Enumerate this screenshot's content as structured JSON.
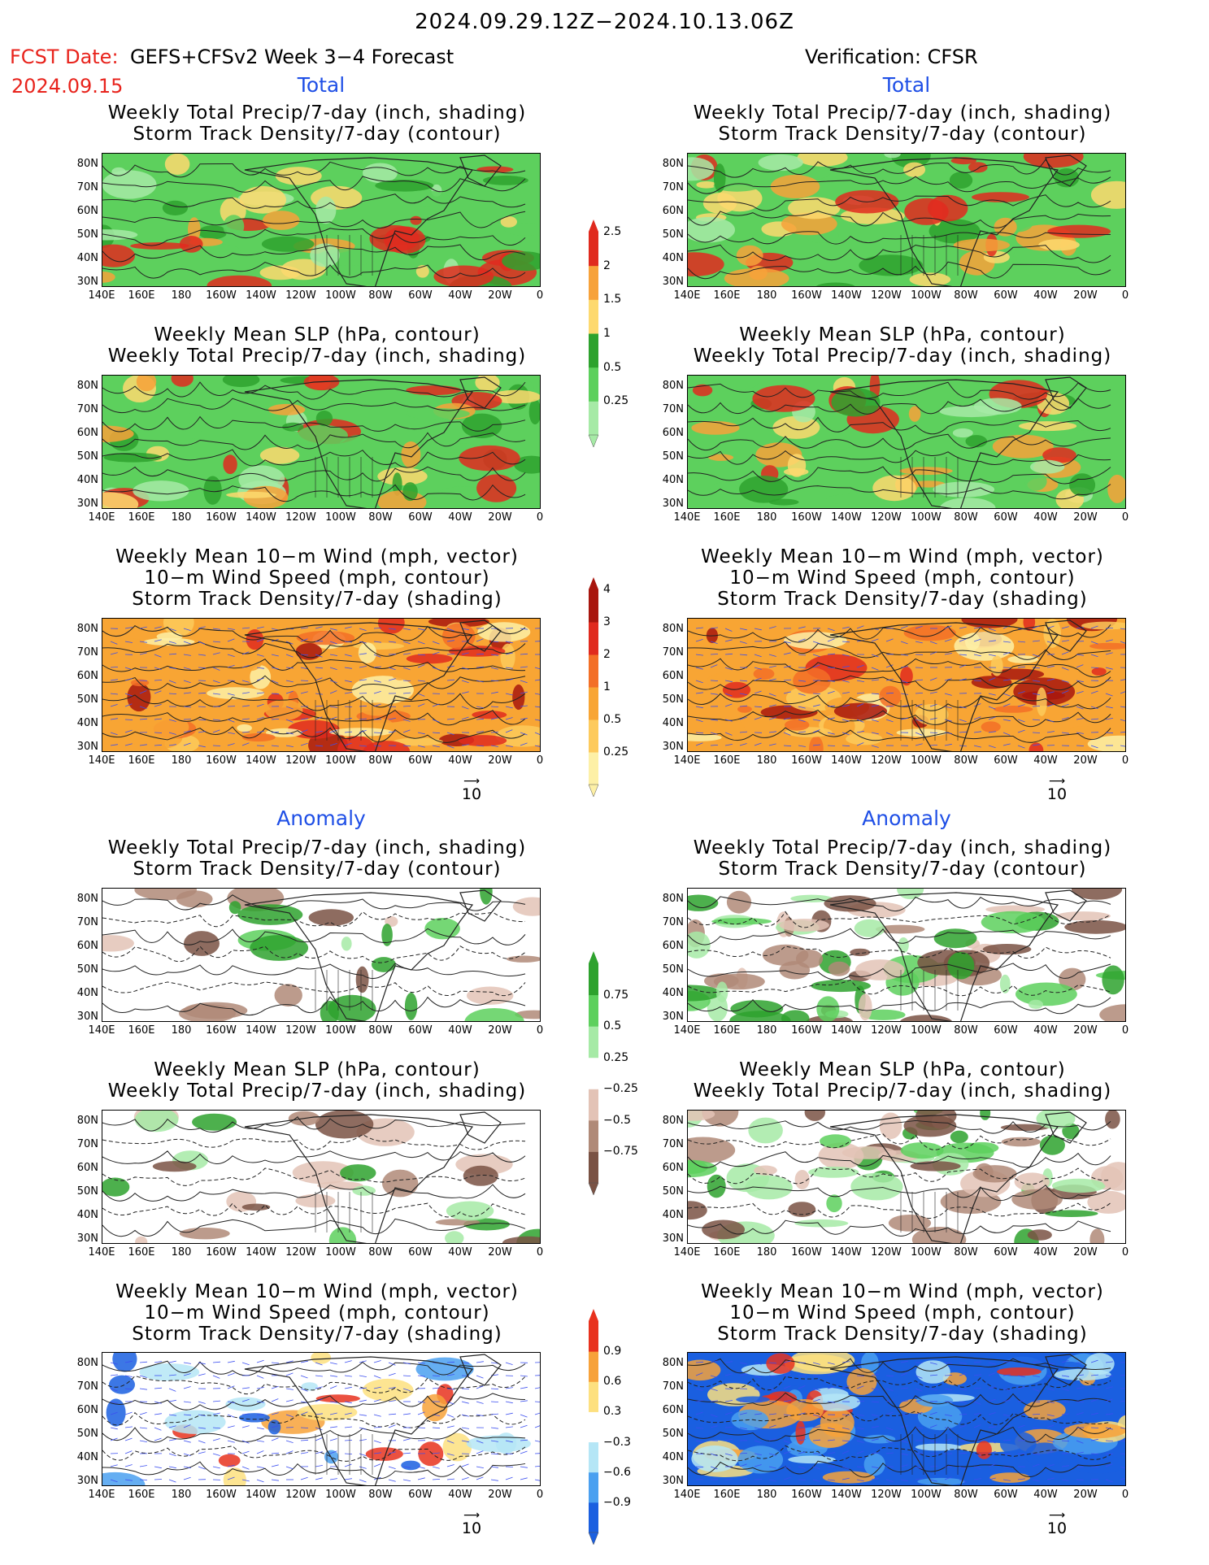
{
  "header": {
    "title": "2024.09.29.12Z−2024.10.13.06Z",
    "fcst_label": "FCST Date:",
    "fcst_model": "GEFS+CFSv2 Week 3−4 Forecast",
    "fcst_date": "2024.09.15",
    "verification": "Verification: CFSR"
  },
  "sections": {
    "total": "Total",
    "anomaly": "Anomaly"
  },
  "panels": {
    "precip_storm": [
      "Weekly Total Precip/7-day (inch, shading)",
      "Storm Track Density/7-day (contour)"
    ],
    "slp_precip": [
      "Weekly Mean SLP (hPa, contour)",
      "Weekly Total Precip/7-day (inch, shading)"
    ],
    "wind_storm": [
      "Weekly Mean 10−m Wind (mph, vector)",
      "10−m Wind Speed (mph, contour)",
      "Storm Track Density/7-day (shading)"
    ]
  },
  "axes": {
    "lat": [
      "80N",
      "70N",
      "60N",
      "50N",
      "40N",
      "30N"
    ],
    "lon": [
      "140E",
      "160E",
      "180",
      "160W",
      "140W",
      "120W",
      "100W",
      "80W",
      "60W",
      "40W",
      "20W",
      "0"
    ]
  },
  "vector_ref": "10",
  "colorbars": {
    "precip_total": {
      "labels": [
        "2.5",
        "2",
        "1.5",
        "1",
        "0.5",
        "0.25"
      ],
      "colors": [
        "#e02a1e",
        "#f7a23a",
        "#fdd96f",
        "#2ea22e",
        "#5dd05d",
        "#a6eaa6"
      ]
    },
    "storm_total": {
      "labels": [
        "4",
        "3",
        "2",
        "1",
        "0.5",
        "0.25"
      ],
      "colors": [
        "#a8160e",
        "#e02a1e",
        "#f36f27",
        "#f8a534",
        "#fdca5c",
        "#fdf0a6"
      ]
    },
    "precip_anom": {
      "labels": [
        "0.75",
        "0.5",
        "0.25",
        "−0.25",
        "−0.5",
        "−0.75"
      ],
      "colors": [
        "#2ea22e",
        "#5dd05d",
        "#a6eaa6",
        "#ffffff",
        "#e3c3b6",
        "#b08a78",
        "#7a5244"
      ]
    },
    "storm_anom": {
      "labels": [
        "0.9",
        "0.6",
        "0.3",
        "−0.3",
        "−0.6",
        "−0.9"
      ],
      "colors": [
        "#e8321e",
        "#f7a23a",
        "#fde07f",
        "#ffffff",
        "#b5e6f6",
        "#4aa0f0",
        "#1a5fe0"
      ]
    }
  },
  "colors": {
    "land_outline": "#222222",
    "contour": "#222222",
    "wind_vector": "#3b4ef0"
  }
}
